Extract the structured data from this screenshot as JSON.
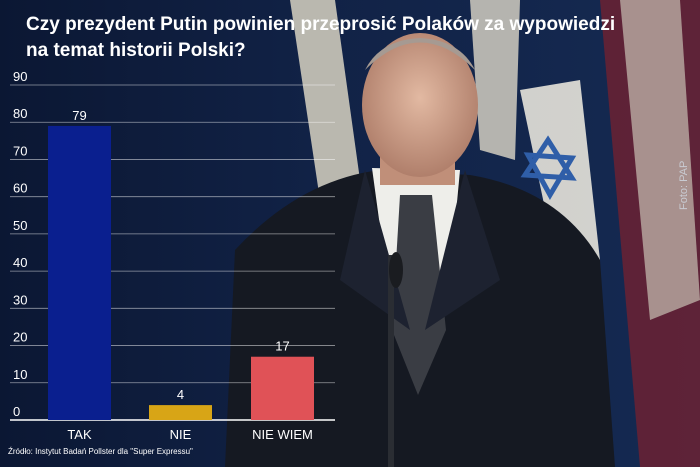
{
  "photo_credit": "Foto: PAP",
  "source": "Źródło: Instytut Badań Pollster dla \"Super Expressu\"",
  "colors": {
    "tak": "#0a1f8f",
    "nie": "#d8a516",
    "nie_wiem": "#e05257",
    "text": "#ffffff"
  },
  "chart_data": {
    "type": "bar",
    "title": "Czy prezydent Putin  powinien przeprosić Polaków za wypowiedzi na temat historii Polski?",
    "categories": [
      "TAK",
      "NIE",
      "NIE WIEM"
    ],
    "values": [
      79,
      4,
      17
    ],
    "data_labels": [
      "79",
      "4",
      "17"
    ],
    "ylim": [
      0,
      90
    ],
    "yticks": [
      "0",
      "10",
      "20",
      "30",
      "40",
      "50",
      "60",
      "70",
      "80",
      "90"
    ],
    "grid": true,
    "legend": "none"
  }
}
